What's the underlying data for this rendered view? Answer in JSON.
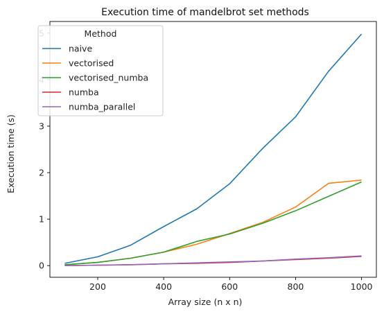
{
  "chart_data": {
    "type": "line",
    "title": "Execution time of mandelbrot set methods",
    "xlabel": "Array size (n x n)",
    "ylabel": "Execution time (s)",
    "xlim": [
      55,
      1045
    ],
    "ylim": [
      -0.25,
      5.25
    ],
    "xticks": [
      200,
      400,
      600,
      800,
      1000
    ],
    "yticks": [
      0,
      1,
      2,
      3,
      4,
      5
    ],
    "grid": false,
    "legend": {
      "title": "Method",
      "placement": "top-left"
    },
    "x": [
      100,
      200,
      300,
      400,
      500,
      600,
      700,
      800,
      900,
      1000
    ],
    "series": [
      {
        "name": "naive",
        "color": "#1f77b4",
        "values": [
          0.05,
          0.19,
          0.44,
          0.84,
          1.22,
          1.76,
          2.52,
          3.2,
          4.18,
          4.98
        ]
      },
      {
        "name": "vectorised",
        "color": "#ff7f0e",
        "values": [
          0.02,
          0.07,
          0.16,
          0.29,
          0.46,
          0.69,
          0.93,
          1.26,
          1.77,
          1.84
        ]
      },
      {
        "name": "vectorised_numba",
        "color": "#2ca02c",
        "values": [
          0.02,
          0.07,
          0.16,
          0.29,
          0.52,
          0.68,
          0.91,
          1.18,
          1.49,
          1.8
        ]
      },
      {
        "name": "numba",
        "color": "#d62728",
        "values": [
          0.0,
          0.01,
          0.02,
          0.04,
          0.05,
          0.07,
          0.1,
          0.13,
          0.16,
          0.2
        ]
      },
      {
        "name": "numba_parallel",
        "color": "#9467bd",
        "values": [
          0.0,
          0.01,
          0.02,
          0.04,
          0.06,
          0.08,
          0.1,
          0.14,
          0.17,
          0.21
        ]
      }
    ]
  }
}
